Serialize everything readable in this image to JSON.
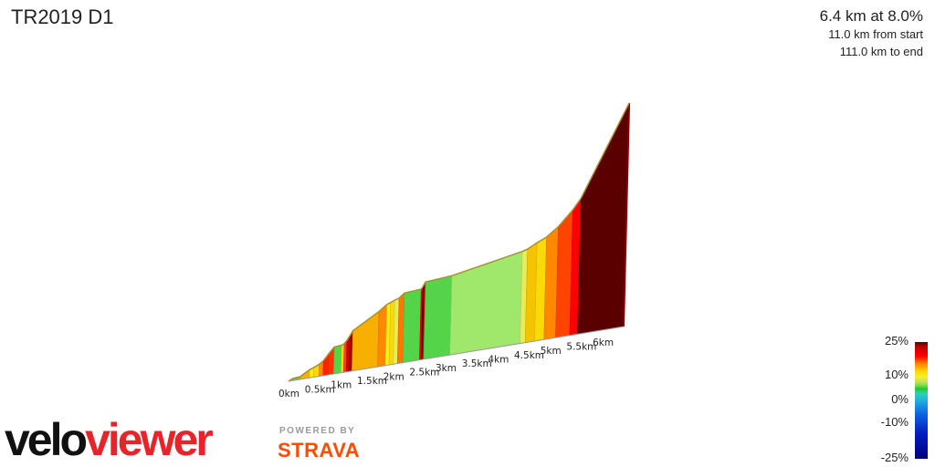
{
  "title": "TR2019 D1",
  "info": {
    "headline": "6.4 km at 8.0%",
    "from_start": "11.0 km from start",
    "to_end": "111.0 km to end"
  },
  "legend": {
    "labels": [
      "25%",
      "10%",
      "0%",
      "-10%",
      "-25%"
    ]
  },
  "branding": {
    "logo_part1": "velo",
    "logo_part2": "viewer",
    "powered_by": "POWERED BY",
    "strava": "STRAVA"
  },
  "chart_data": {
    "type": "area",
    "title": "TR2019 D1",
    "xlabel": "",
    "ylabel": "",
    "x_unit": "km",
    "tick_labels": [
      "0km",
      "0.5km",
      "1km",
      "1.5km",
      "2km",
      "2.5km",
      "3km",
      "3.5km",
      "4km",
      "4.5km",
      "5km",
      "5.5km",
      "6km"
    ],
    "tick_values": [
      0,
      0.5,
      1,
      1.5,
      2,
      2.5,
      3,
      3.5,
      4,
      4.5,
      5,
      5.5,
      6
    ],
    "xlim": [
      0,
      6.4
    ],
    "segments": [
      {
        "x0": 0.0,
        "x1": 0.08,
        "gradient": 7
      },
      {
        "x0": 0.08,
        "x1": 0.22,
        "gradient": 1
      },
      {
        "x0": 0.22,
        "x1": 0.4,
        "gradient": 8
      },
      {
        "x0": 0.4,
        "x1": 0.48,
        "gradient": 5
      },
      {
        "x0": 0.48,
        "x1": 0.58,
        "gradient": 6
      },
      {
        "x0": 0.58,
        "x1": 0.66,
        "gradient": 10
      },
      {
        "x0": 0.66,
        "x1": 0.76,
        "gradient": 16
      },
      {
        "x0": 0.76,
        "x1": 0.86,
        "gradient": 15
      },
      {
        "x0": 0.86,
        "x1": 1.0,
        "gradient": 1
      },
      {
        "x0": 1.0,
        "x1": 1.05,
        "gradient": 6
      },
      {
        "x0": 1.05,
        "x1": 1.1,
        "gradient": 14
      },
      {
        "x0": 1.1,
        "x1": 1.16,
        "gradient": 20
      },
      {
        "x0": 1.16,
        "x1": 1.21,
        "gradient": 22
      },
      {
        "x0": 1.21,
        "x1": 1.7,
        "gradient": 8
      },
      {
        "x0": 1.7,
        "x1": 1.85,
        "gradient": 10
      },
      {
        "x0": 1.85,
        "x1": 1.92,
        "gradient": 5
      },
      {
        "x0": 1.92,
        "x1": 2.0,
        "gradient": 6
      },
      {
        "x0": 2.0,
        "x1": 2.08,
        "gradient": 4
      },
      {
        "x0": 2.08,
        "x1": 2.18,
        "gradient": 11
      },
      {
        "x0": 2.18,
        "x1": 2.5,
        "gradient": 1
      },
      {
        "x0": 2.5,
        "x1": 2.53,
        "gradient": 18
      },
      {
        "x0": 2.53,
        "x1": 2.56,
        "gradient": 25
      },
      {
        "x0": 2.56,
        "x1": 2.58,
        "gradient": 20
      },
      {
        "x0": 2.58,
        "x1": 3.08,
        "gradient": 1
      },
      {
        "x0": 3.08,
        "x1": 4.42,
        "gradient": 2.5
      },
      {
        "x0": 4.42,
        "x1": 4.52,
        "gradient": 4
      },
      {
        "x0": 4.52,
        "x1": 4.7,
        "gradient": 7
      },
      {
        "x0": 4.7,
        "x1": 4.88,
        "gradient": 6
      },
      {
        "x0": 4.88,
        "x1": 5.1,
        "gradient": 10
      },
      {
        "x0": 5.1,
        "x1": 5.37,
        "gradient": 14
      },
      {
        "x0": 5.37,
        "x1": 5.52,
        "gradient": 18
      }
    ]
  }
}
